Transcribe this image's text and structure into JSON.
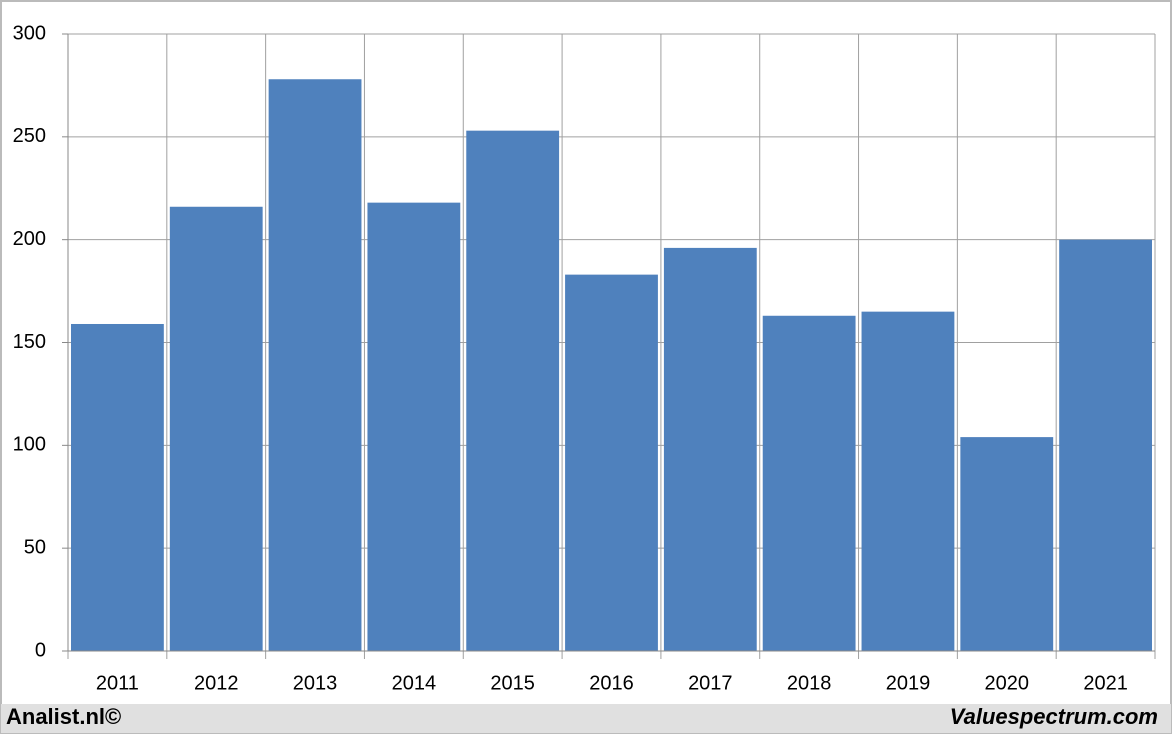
{
  "chart_data": {
    "type": "bar",
    "categories": [
      "2011",
      "2012",
      "2013",
      "2014",
      "2015",
      "2016",
      "2017",
      "2018",
      "2019",
      "2020",
      "2021"
    ],
    "values": [
      159,
      216,
      278,
      218,
      253,
      183,
      196,
      163,
      165,
      104,
      200
    ],
    "color": "#4f81bd",
    "ylim": [
      0,
      300
    ],
    "yticks": [
      0,
      50,
      100,
      150,
      200,
      250,
      300
    ],
    "grid": true,
    "footer_left": "Analist.nl©",
    "footer_right": "Valuespectrum.com"
  }
}
